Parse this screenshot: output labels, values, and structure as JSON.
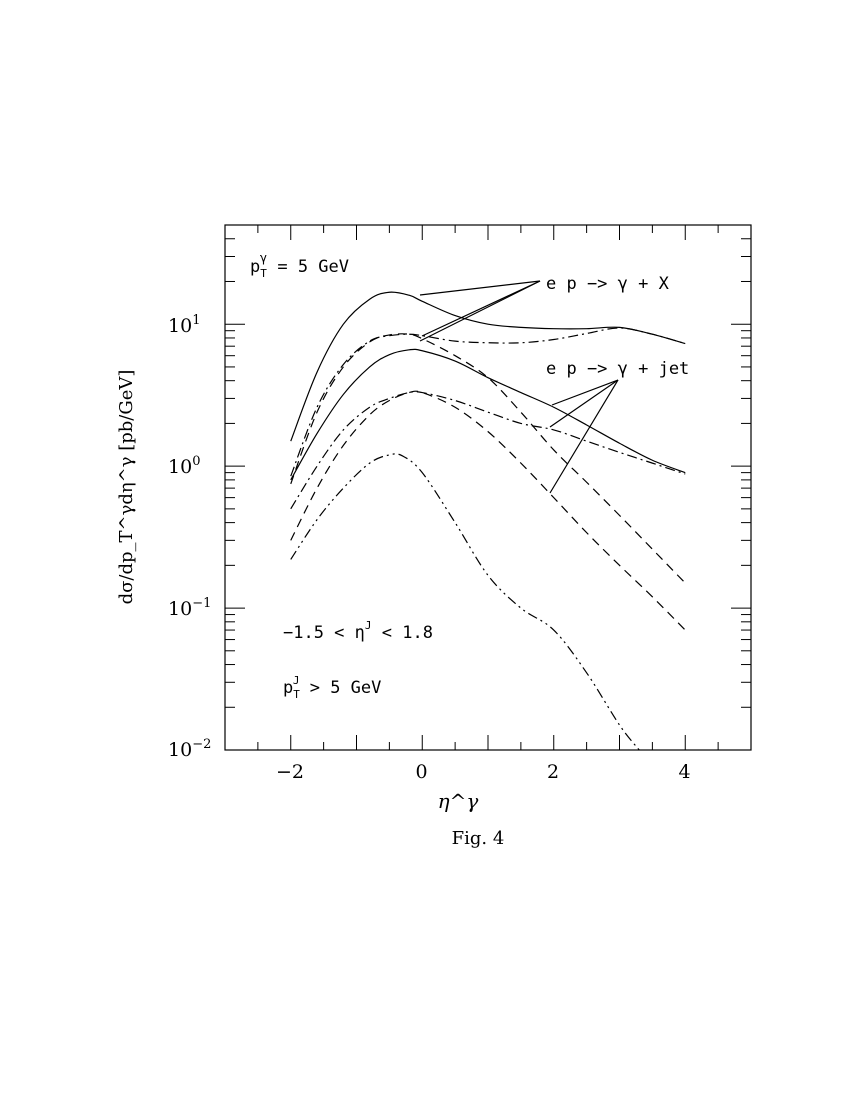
{
  "chart_data": {
    "type": "line",
    "xlabel": "η^γ",
    "ylabel": "dσ/dp_T^γdη^γ [pb/GeV]",
    "xlim": [
      -3,
      5
    ],
    "ylim": [
      0.01,
      50
    ],
    "yscale": "log",
    "grid": false,
    "x_ticks": [
      -2,
      0,
      2,
      4
    ],
    "x_tick_labels": [
      "−2",
      "0",
      "2",
      "4"
    ],
    "y_ticks": [
      0.01,
      0.1,
      1,
      10
    ],
    "y_tick_labels": [
      {
        "mantissa": "10",
        "exponent": "−2"
      },
      {
        "mantissa": "10",
        "exponent": "−1"
      },
      {
        "mantissa": "10",
        "exponent": "0"
      },
      {
        "mantissa": "10",
        "exponent": "1"
      }
    ],
    "series": [
      {
        "style": "solid",
        "x": [
          -2,
          -1.6,
          -1.2,
          -0.8,
          -0.5,
          -0.2,
          0,
          0.5,
          1,
          1.5,
          2,
          2.5,
          3,
          3.5,
          4
        ],
        "y": [
          1.5,
          4.6,
          10,
          15,
          16.8,
          16,
          14.5,
          11.5,
          10,
          9.5,
          9.3,
          9.3,
          9.5,
          8.5,
          7.3
        ]
      },
      {
        "style": "dashdot",
        "x": [
          -2,
          -1.6,
          -1.2,
          -0.8,
          -0.5,
          -0.2,
          0,
          0.5,
          1,
          1.5,
          2,
          2.5,
          3,
          3.5,
          4
        ],
        "y": [
          0.85,
          2.6,
          5.2,
          7.6,
          8.3,
          8.5,
          8.3,
          7.6,
          7.4,
          7.4,
          7.8,
          8.6,
          9.4,
          8.5,
          7.3
        ]
      },
      {
        "style": "dashed",
        "x": [
          -2,
          -1.6,
          -1.2,
          -0.8,
          -0.5,
          -0.2,
          0,
          0.5,
          1,
          1.5,
          2,
          2.5,
          3,
          3.5,
          4
        ],
        "y": [
          0.75,
          2.4,
          5,
          7.5,
          8.4,
          8.5,
          7.9,
          6,
          4.2,
          2.4,
          1.3,
          0.77,
          0.45,
          0.26,
          0.15
        ]
      },
      {
        "style": "solid",
        "x": [
          -2,
          -1.6,
          -1.2,
          -0.8,
          -0.5,
          -0.2,
          0,
          0.5,
          1,
          1.5,
          2,
          2.5,
          3,
          3.5,
          4
        ],
        "y": [
          0.8,
          1.7,
          3.2,
          5,
          6.1,
          6.6,
          6.5,
          5.5,
          4.2,
          3.3,
          2.6,
          1.95,
          1.45,
          1.1,
          0.9
        ]
      },
      {
        "style": "dashdot",
        "x": [
          -2,
          -1.6,
          -1.2,
          -0.8,
          -0.5,
          -0.2,
          0,
          0.5,
          1,
          1.5,
          2,
          2.5,
          3,
          3.5,
          4
        ],
        "y": [
          0.5,
          1,
          1.8,
          2.6,
          3,
          3.3,
          3.3,
          2.9,
          2.4,
          2,
          1.8,
          1.5,
          1.25,
          1.05,
          0.88
        ]
      },
      {
        "style": "dashed",
        "x": [
          -2,
          -1.6,
          -1.2,
          -0.8,
          -0.5,
          -0.2,
          0,
          0.5,
          1,
          1.5,
          2,
          2.5,
          3,
          3.5,
          4
        ],
        "y": [
          0.3,
          0.7,
          1.4,
          2.3,
          2.9,
          3.3,
          3.3,
          2.6,
          1.75,
          1.05,
          0.6,
          0.34,
          0.2,
          0.12,
          0.07
        ]
      },
      {
        "style": "dashdotdot",
        "x": [
          -2,
          -1.6,
          -1.2,
          -0.8,
          -0.5,
          -0.3,
          0,
          0.5,
          1,
          1.5,
          2,
          2.5,
          3,
          3.3
        ],
        "y": [
          0.22,
          0.42,
          0.7,
          1.05,
          1.2,
          1.18,
          0.9,
          0.4,
          0.17,
          0.1,
          0.07,
          0.035,
          0.015,
          0.01
        ]
      }
    ],
    "annotations": {
      "pt_gamma": {
        "p": "p",
        "sub": "T",
        "sup": "γ",
        "rest": " = 5 GeV"
      },
      "process_x": "e p −> γ + X",
      "process_jet": "e p −> γ + jet",
      "eta_jet_cut": {
        "left": "−1.5 < η",
        "sup": "J",
        "right": " < 1.8"
      },
      "pt_jet_cut": {
        "p": "p",
        "sub": "T",
        "sup": "J",
        "rest": " > 5 GeV"
      }
    },
    "caption": "Fig. 4"
  }
}
